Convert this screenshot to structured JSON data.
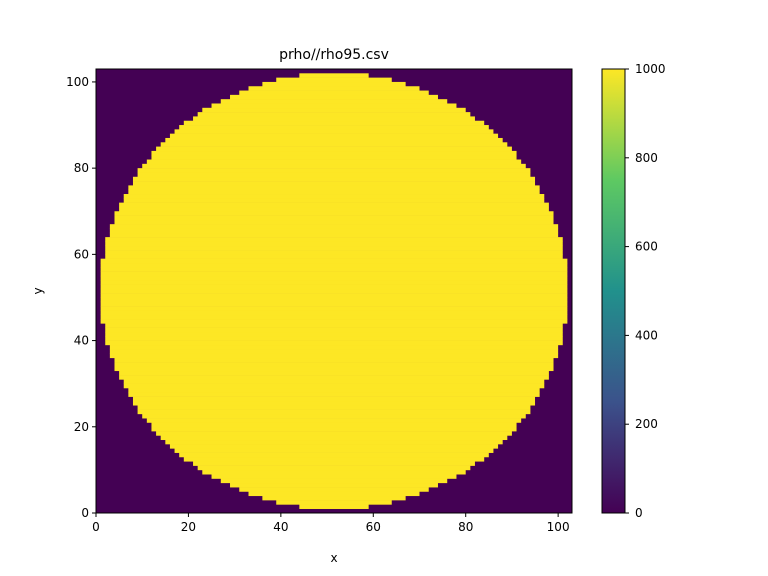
{
  "chart_data": {
    "type": "heatmap",
    "title": "prho//rho95.csv",
    "xlabel": "x",
    "ylabel": "y",
    "xlim": [
      0,
      103
    ],
    "ylim": [
      0,
      103
    ],
    "grid": false,
    "xticks": [
      0,
      20,
      40,
      60,
      80,
      100
    ],
    "yticks": [
      0,
      20,
      40,
      60,
      80,
      100
    ],
    "region": {
      "shape": "disk",
      "center": [
        51.5,
        51.5
      ],
      "radius": 50.5,
      "inside_value": 1000,
      "outside_value": 0
    },
    "colorbar": {
      "colormap": "viridis",
      "range": [
        0,
        1000
      ],
      "ticks": [
        0,
        200,
        400,
        600,
        800,
        1000
      ],
      "colors": [
        "#440154",
        "#3b528b",
        "#21918c",
        "#5ec962",
        "#fde725"
      ]
    }
  }
}
